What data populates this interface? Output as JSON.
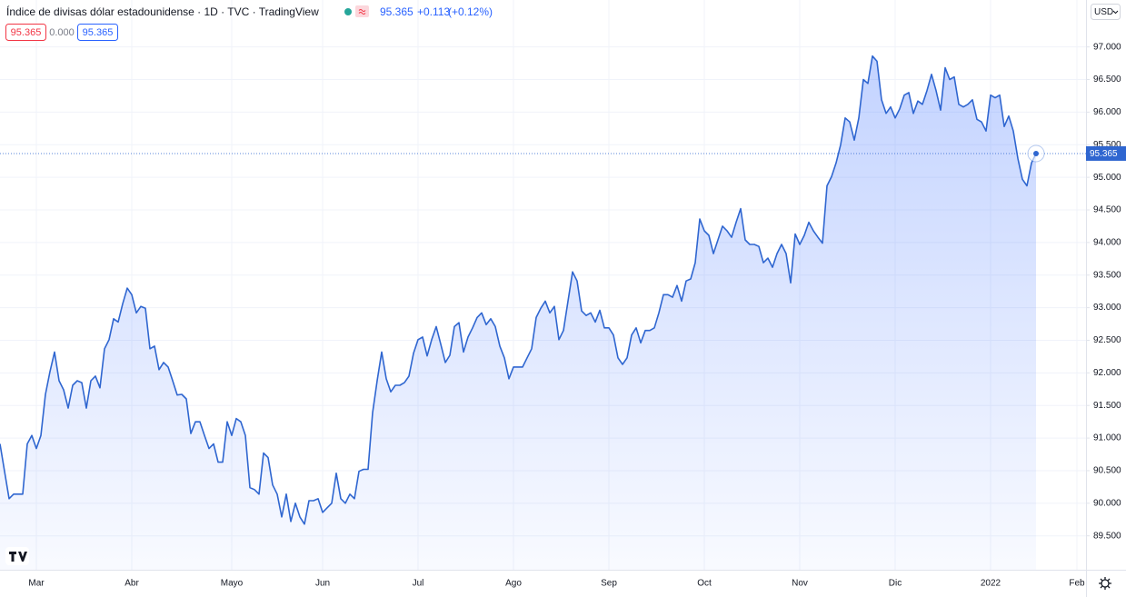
{
  "header": {
    "title": "Índice de divisas dólar estadounidense · 1D · TVC · TradingView",
    "change": "+0.113",
    "change_pct": "(+0.12%)",
    "indicators": [
      "95.365",
      "0.000",
      "95.365"
    ],
    "currency": "USD"
  },
  "chart_data": {
    "type": "area",
    "color": "#2f66d0",
    "grid": true,
    "categories": [
      null,
      null,
      null,
      null,
      null,
      null,
      null,
      null,
      "Mar",
      null,
      null,
      null,
      null,
      null,
      null,
      null,
      null,
      null,
      null,
      null,
      null,
      null,
      null,
      null,
      null,
      null,
      null,
      null,
      null,
      "Abr",
      null,
      null,
      null,
      null,
      null,
      null,
      null,
      null,
      null,
      null,
      null,
      null,
      null,
      null,
      null,
      null,
      null,
      null,
      null,
      null,
      null,
      "Mayo",
      null,
      null,
      null,
      null,
      null,
      null,
      null,
      null,
      null,
      null,
      null,
      null,
      null,
      null,
      null,
      null,
      null,
      null,
      null,
      "Jun",
      null,
      null,
      null,
      null,
      null,
      null,
      null,
      null,
      null,
      null,
      null,
      null,
      null,
      null,
      null,
      null,
      null,
      null,
      null,
      null,
      "Jul",
      null,
      null,
      null,
      null,
      null,
      null,
      null,
      null,
      null,
      null,
      null,
      null,
      null,
      null,
      null,
      null,
      null,
      null,
      null,
      null,
      "Ago",
      null,
      null,
      null,
      null,
      null,
      null,
      null,
      null,
      null,
      null,
      null,
      null,
      null,
      null,
      null,
      null,
      null,
      null,
      null,
      null,
      "Sep",
      null,
      null,
      null,
      null,
      null,
      null,
      null,
      null,
      null,
      null,
      null,
      null,
      null,
      null,
      null,
      null,
      null,
      null,
      null,
      null,
      "Oct",
      null,
      null,
      null,
      null,
      null,
      null,
      null,
      null,
      null,
      null,
      null,
      null,
      null,
      null,
      null,
      null,
      null,
      null,
      null,
      null,
      "Nov",
      null,
      null,
      null,
      null,
      null,
      null,
      null,
      null,
      null,
      null,
      null,
      null,
      null,
      null,
      null,
      null,
      null,
      null,
      null,
      null,
      "Dic",
      null,
      null,
      null,
      null,
      null,
      null,
      null,
      null,
      null,
      null,
      null,
      null,
      null,
      null,
      null,
      null,
      null,
      null,
      null,
      null,
      "2022",
      null,
      null,
      null,
      null,
      null,
      null,
      null,
      null,
      null,
      null,
      null,
      null,
      null,
      null,
      null,
      null,
      null,
      null,
      "Feb",
      null,
      null
    ],
    "values": [
      90.91,
      90.49,
      90.07,
      90.14,
      90.14,
      90.14,
      90.91,
      91.04,
      90.84,
      91.04,
      91.67,
      92.02,
      92.32,
      91.88,
      91.74,
      91.46,
      91.81,
      91.88,
      91.85,
      91.46,
      91.88,
      91.95,
      91.77,
      92.37,
      92.51,
      92.83,
      92.78,
      93.06,
      93.3,
      93.2,
      92.92,
      93.02,
      92.99,
      92.37,
      92.41,
      92.05,
      92.16,
      92.09,
      91.88,
      91.66,
      91.67,
      91.6,
      91.07,
      91.25,
      91.25,
      91.04,
      90.84,
      90.91,
      90.63,
      90.63,
      91.25,
      91.04,
      91.3,
      91.25,
      91.04,
      90.24,
      90.21,
      90.14,
      90.77,
      90.7,
      90.28,
      90.14,
      89.79,
      90.14,
      89.72,
      90.0,
      89.79,
      89.68,
      90.04,
      90.04,
      90.07,
      89.86,
      89.93,
      90.0,
      90.46,
      90.07,
      90.0,
      90.14,
      90.07,
      90.49,
      90.52,
      90.52,
      91.39,
      91.88,
      92.32,
      91.91,
      91.71,
      91.81,
      91.81,
      91.85,
      91.95,
      92.3,
      92.51,
      92.55,
      92.26,
      92.51,
      92.71,
      92.44,
      92.16,
      92.27,
      92.71,
      92.77,
      92.32,
      92.55,
      92.69,
      92.85,
      92.92,
      92.74,
      92.83,
      92.71,
      92.41,
      92.23,
      91.91,
      92.09,
      92.09,
      92.09,
      92.23,
      92.37,
      92.85,
      92.99,
      93.1,
      92.92,
      93.02,
      92.51,
      92.65,
      93.1,
      93.55,
      93.41,
      92.95,
      92.88,
      92.92,
      92.78,
      92.96,
      92.69,
      92.69,
      92.58,
      92.23,
      92.13,
      92.23,
      92.58,
      92.69,
      92.46,
      92.65,
      92.65,
      92.69,
      92.92,
      93.2,
      93.2,
      93.16,
      93.34,
      93.1,
      93.41,
      93.44,
      93.69,
      94.36,
      94.18,
      94.11,
      93.83,
      94.04,
      94.25,
      94.18,
      94.08,
      94.31,
      94.52,
      94.04,
      93.97,
      93.97,
      93.94,
      93.69,
      93.76,
      93.62,
      93.83,
      93.97,
      93.83,
      93.38,
      94.13,
      93.97,
      94.11,
      94.31,
      94.18,
      94.08,
      93.99,
      94.87,
      95.01,
      95.22,
      95.5,
      95.91,
      95.85,
      95.57,
      95.91,
      96.5,
      96.44,
      96.86,
      96.78,
      96.19,
      95.98,
      96.08,
      95.91,
      96.05,
      96.26,
      96.3,
      95.98,
      96.17,
      96.12,
      96.33,
      96.58,
      96.33,
      96.03,
      96.68,
      96.5,
      96.54,
      96.12,
      96.08,
      96.12,
      96.19,
      95.89,
      95.85,
      95.71,
      96.26,
      96.22,
      96.26,
      95.78,
      95.94,
      95.71,
      95.29,
      94.97,
      94.87,
      95.22,
      95.365,
      null,
      null,
      null,
      null,
      null,
      null,
      null,
      null,
      null,
      null,
      null
    ],
    "ylim": [
      88.98,
      97.72
    ],
    "yticks": [
      {
        "value": 89.5,
        "label": "89.500"
      },
      {
        "value": 90,
        "label": "90.000"
      },
      {
        "value": 90.5,
        "label": "90.500"
      },
      {
        "value": 91,
        "label": "91.000"
      },
      {
        "value": 91.5,
        "label": "91.500"
      },
      {
        "value": 92,
        "label": "92.000"
      },
      {
        "value": 92.5,
        "label": "92.500"
      },
      {
        "value": 93,
        "label": "93.000"
      },
      {
        "value": 93.5,
        "label": "93.500"
      },
      {
        "value": 94,
        "label": "94.000"
      },
      {
        "value": 94.5,
        "label": "94.500"
      },
      {
        "value": 95,
        "label": "95.000"
      },
      {
        "value": 95.5,
        "label": "95.500"
      },
      {
        "value": 96,
        "label": "96.000"
      },
      {
        "value": 96.5,
        "label": "96.500"
      },
      {
        "value": 97,
        "label": "97.000"
      }
    ]
  }
}
